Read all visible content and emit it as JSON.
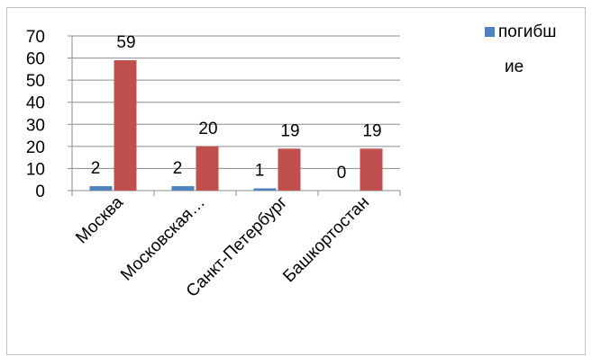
{
  "chart_data": {
    "type": "bar",
    "categories": [
      "Москва",
      "Московская…",
      "Санкт-Петербург",
      "Башкортостан"
    ],
    "series": [
      {
        "name": "погибшие",
        "legend_lines": [
          "погибш",
          "ие"
        ],
        "values": [
          2,
          2,
          1,
          0
        ],
        "color": "#4F81BD"
      },
      {
        "values": [
          59,
          20,
          19,
          19
        ],
        "color": "#C0504D"
      }
    ],
    "yticks": [
      "0",
      "10",
      "20",
      "30",
      "40",
      "50",
      "60",
      "70"
    ],
    "ylim": [
      0,
      70
    ],
    "grid": true,
    "legend_position": "top-right"
  }
}
